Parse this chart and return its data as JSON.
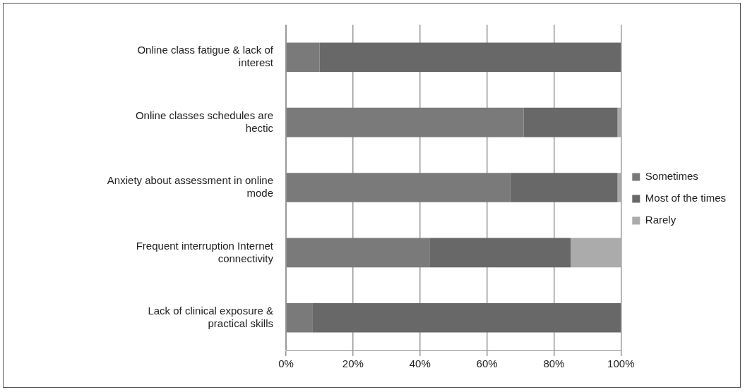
{
  "chart_data": {
    "type": "bar",
    "orientation": "horizontal",
    "stacked": true,
    "categories": [
      "Online class fatigue & lack of interest",
      "Online classes schedules are hectic",
      "Anxiety about assessment in online mode",
      "Frequent interruption Internet connectivity",
      "Lack of clinical exposure & practical skills"
    ],
    "series": [
      {
        "name": "Sometimes",
        "color": "#7a7a7a",
        "values": [
          10,
          71,
          67,
          43,
          8
        ]
      },
      {
        "name": "Most of the times",
        "color": "#686868",
        "values": [
          90,
          28,
          32,
          42,
          92
        ]
      },
      {
        "name": "Rarely",
        "color": "#ababab",
        "values": [
          0,
          1,
          1,
          15,
          0
        ]
      }
    ],
    "xlim": [
      0,
      100
    ],
    "xticks": [
      {
        "value": 0,
        "label": "0%"
      },
      {
        "value": 20,
        "label": "20%"
      },
      {
        "value": 40,
        "label": "40%"
      },
      {
        "value": 60,
        "label": "60%"
      },
      {
        "value": 80,
        "label": "80%"
      },
      {
        "value": 100,
        "label": "100%"
      }
    ],
    "grid": "x",
    "legend": "right"
  }
}
